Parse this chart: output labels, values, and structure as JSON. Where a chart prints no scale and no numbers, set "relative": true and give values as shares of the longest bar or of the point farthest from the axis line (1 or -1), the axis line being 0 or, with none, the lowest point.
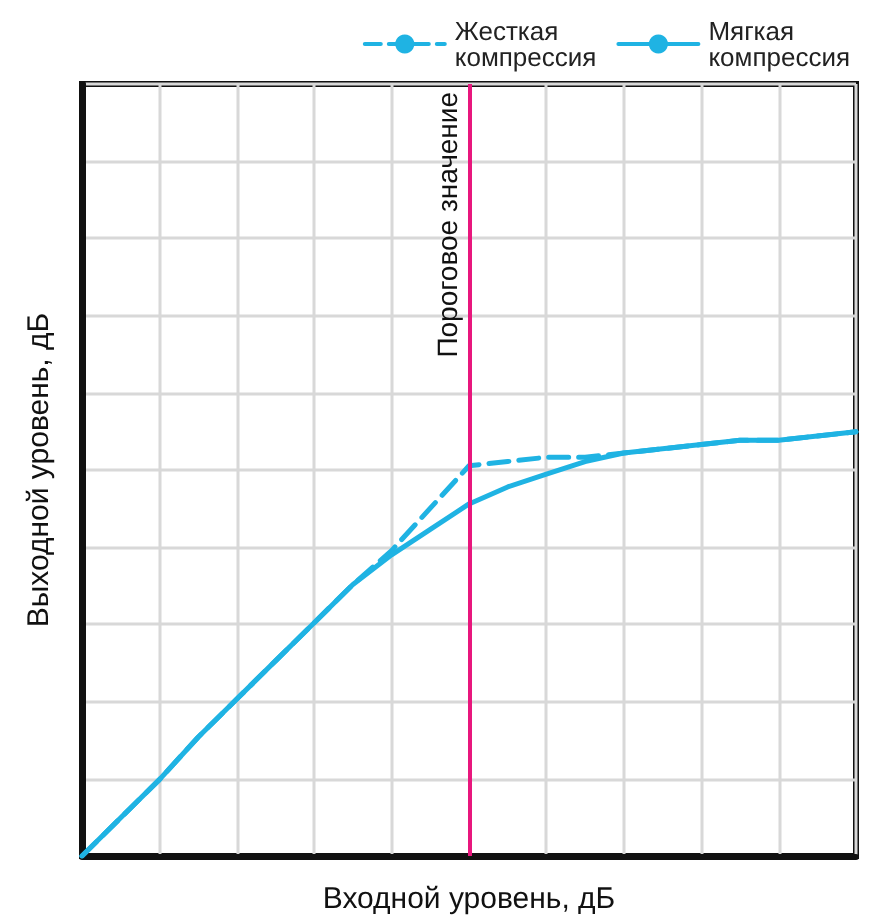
{
  "chart_data": {
    "type": "line",
    "relative": true,
    "xlabel": "Входной уровень, дБ",
    "ylabel": "Выходной уровень, дБ",
    "categories": [
      null,
      null,
      null,
      null,
      null,
      null,
      null,
      null,
      null,
      null,
      null,
      null,
      null,
      null,
      null,
      null,
      null,
      null,
      null,
      null,
      null
    ],
    "series": [
      {
        "name": "Жесткая компрессия",
        "color": "#1fb3e3",
        "line_style": "dashed",
        "values": [
          0,
          0.09,
          0.18,
          0.28,
          0.37,
          0.46,
          0.55,
          0.64,
          0.72,
          0.82,
          0.92,
          0.93,
          0.94,
          0.94,
          0.95,
          0.96,
          0.97,
          0.98,
          0.98,
          0.99,
          1
        ]
      },
      {
        "name": "Мягкая компрессия",
        "color": "#1fb3e3",
        "line_style": "solid",
        "values": [
          0,
          0.09,
          0.18,
          0.28,
          0.37,
          0.46,
          0.55,
          0.64,
          0.71,
          0.77,
          0.83,
          0.87,
          0.9,
          0.93,
          0.95,
          0.96,
          0.97,
          0.98,
          0.98,
          0.99,
          1
        ]
      }
    ],
    "annotations": [
      "Пороговое значение"
    ],
    "grid": true,
    "legend": "top right",
    "marker": "none"
  }
}
